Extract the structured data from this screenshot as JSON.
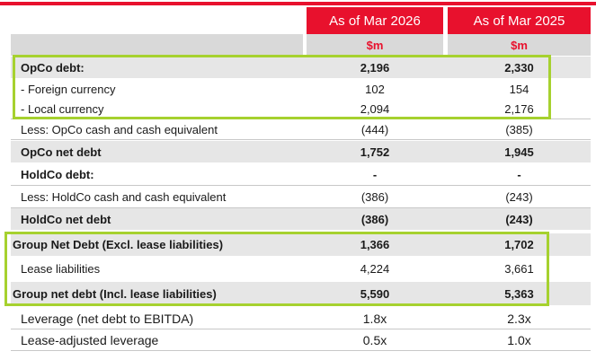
{
  "header": {
    "col1": "As of Mar 2026",
    "col2": "As of Mar 2025",
    "unit1": "$m",
    "unit2": "$m"
  },
  "rows": [
    {
      "label": "OpCo debt:",
      "v1": "2,196",
      "v2": "2,330"
    },
    {
      "label": " - Foreign currency",
      "v1": "102",
      "v2": "154"
    },
    {
      "label": " - Local currency",
      "v1": "2,094",
      "v2": "2,176"
    },
    {
      "label": "Less: OpCo cash and cash equivalent",
      "v1": "(444)",
      "v2": "(385)"
    },
    {
      "label": "OpCo net debt",
      "v1": "1,752",
      "v2": "1,945"
    },
    {
      "label": "HoldCo debt:",
      "v1": "-",
      "v2": "-"
    },
    {
      "label": "Less: HoldCo cash and cash equivalent",
      "v1": "(386)",
      "v2": "(243)"
    },
    {
      "label": "HoldCo net debt",
      "v1": "(386)",
      "v2": "(243)"
    },
    {
      "label": "Group Net Debt (Excl. lease liabilities)",
      "v1": "1,366",
      "v2": "1,702"
    },
    {
      "label": "Lease liabilities",
      "v1": "4,224",
      "v2": "3,661"
    },
    {
      "label": "Group net debt (Incl. lease liabilities)",
      "v1": "5,590",
      "v2": "5,363"
    },
    {
      "label": "Leverage (net debt to EBITDA)",
      "v1": "1.8x",
      "v2": "2.3x"
    },
    {
      "label": "Lease-adjusted leverage",
      "v1": "0.5x",
      "v2": "1.0x"
    }
  ]
}
